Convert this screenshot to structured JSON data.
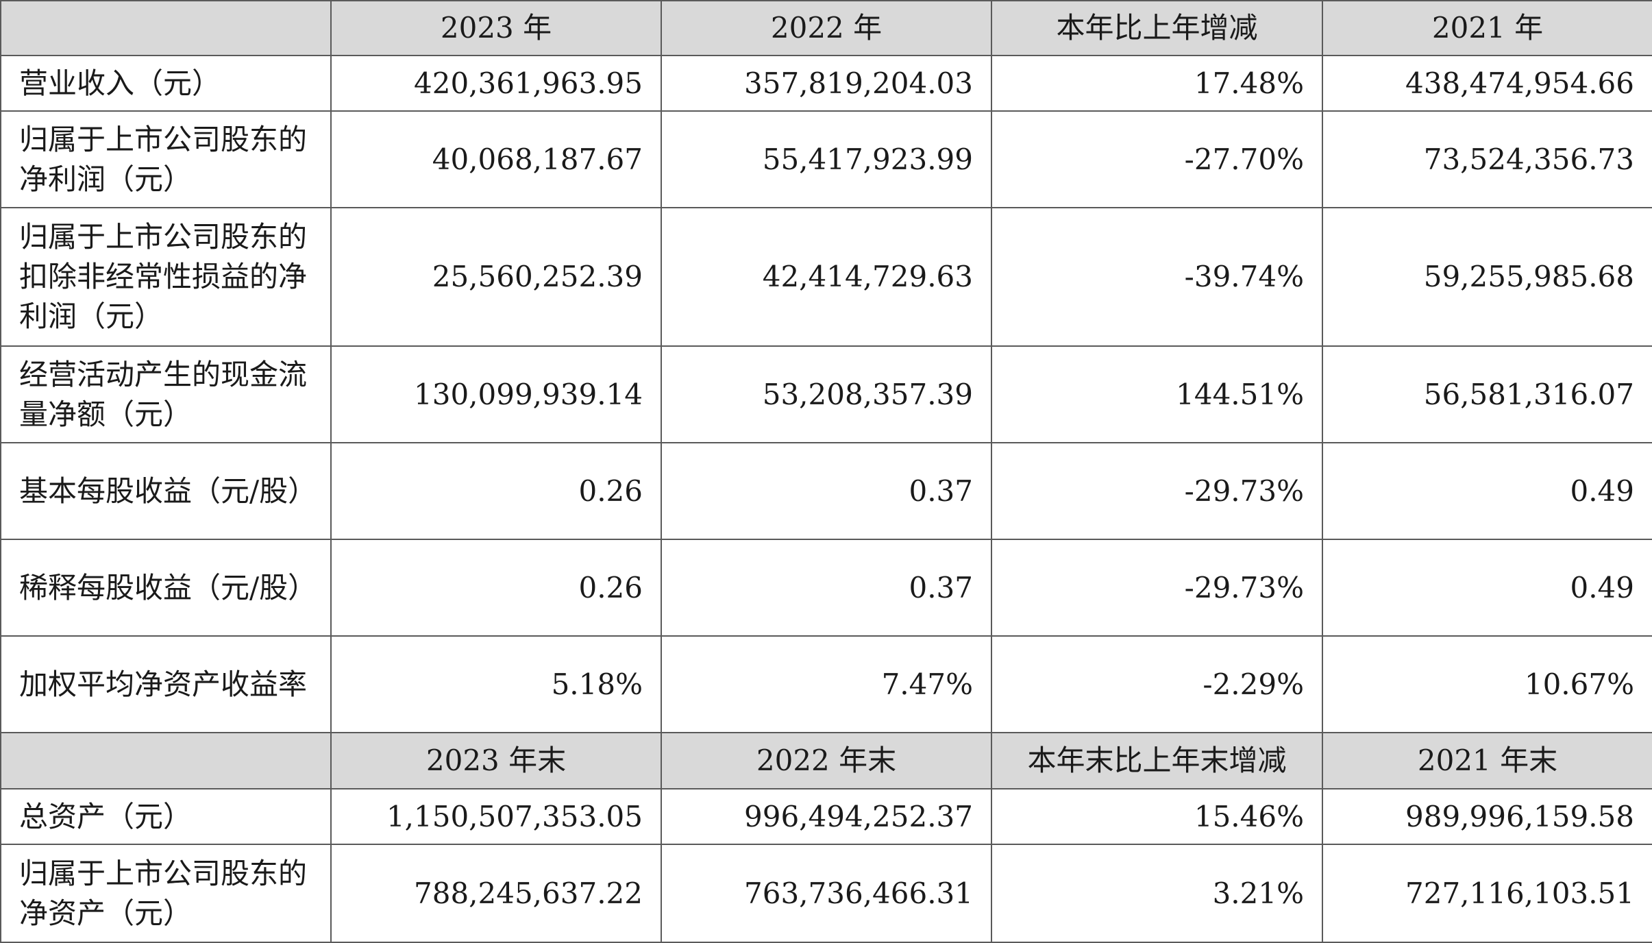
{
  "header1": {
    "corner": "",
    "col1": "2023 年",
    "col2": "2022 年",
    "col3": "本年比上年增减",
    "col4": "2021 年"
  },
  "rows1": [
    {
      "label": "营业收入（元）",
      "v2023": "420,361,963.95",
      "v2022": "357,819,204.03",
      "change": "17.48%",
      "v2021": "438,474,954.66"
    },
    {
      "label": "归属于上市公司股东的净利润（元）",
      "v2023": "40,068,187.67",
      "v2022": "55,417,923.99",
      "change": "-27.70%",
      "v2021": "73,524,356.73"
    },
    {
      "label": "归属于上市公司股东的扣除非经常性损益的净利润（元）",
      "v2023": "25,560,252.39",
      "v2022": "42,414,729.63",
      "change": "-39.74%",
      "v2021": "59,255,985.68"
    },
    {
      "label": "经营活动产生的现金流量净额（元）",
      "v2023": "130,099,939.14",
      "v2022": "53,208,357.39",
      "change": "144.51%",
      "v2021": "56,581,316.07"
    },
    {
      "label": "基本每股收益（元/股）",
      "v2023": "0.26",
      "v2022": "0.37",
      "change": "-29.73%",
      "v2021": "0.49"
    },
    {
      "label": "稀释每股收益（元/股）",
      "v2023": "0.26",
      "v2022": "0.37",
      "change": "-29.73%",
      "v2021": "0.49"
    },
    {
      "label": "加权平均净资产收益率",
      "v2023": "5.18%",
      "v2022": "7.47%",
      "change": "-2.29%",
      "v2021": "10.67%"
    }
  ],
  "header2": {
    "corner": "",
    "col1": "2023 年末",
    "col2": "2022 年末",
    "col3": "本年末比上年末增减",
    "col4": "2021 年末"
  },
  "rows2": [
    {
      "label": "总资产（元）",
      "v2023": "1,150,507,353.05",
      "v2022": "996,494,252.37",
      "change": "15.46%",
      "v2021": "989,996,159.58"
    },
    {
      "label": "归属于上市公司股东的净资产（元）",
      "v2023": "788,245,637.22",
      "v2022": "763,736,466.31",
      "change": "3.21%",
      "v2021": "727,116,103.51"
    }
  ]
}
